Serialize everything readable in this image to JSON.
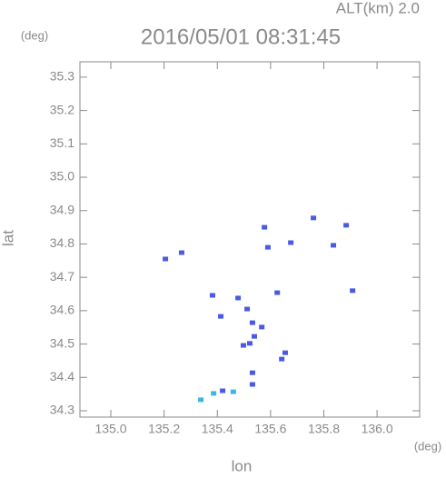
{
  "chart_data": {
    "type": "scatter",
    "title": "2016/05/01 08:31:45",
    "subtitle": "ALT(km) 2.0",
    "x_label": "lon",
    "y_label": "lat",
    "x_unit": "(deg)",
    "y_unit": "(deg)",
    "xlim": [
      134.884,
      136.16
    ],
    "ylim": [
      34.281,
      35.346
    ],
    "xticks": [
      {
        "value": 135.0,
        "label": "135.0"
      },
      135.2,
      135.4,
      135.6,
      135.8,
      {
        "value": 136.0,
        "label": "136.0"
      }
    ],
    "yticks": [
      34.3,
      34.4,
      34.5,
      34.6,
      34.7,
      34.8,
      34.9,
      {
        "value": 35.0,
        "label": "35.0"
      },
      35.1,
      35.2,
      35.3
    ],
    "series": [
      {
        "color": "#4a5ae6",
        "x": [
          135.761,
          135.884,
          135.577,
          135.59,
          135.676,
          135.836,
          135.266,
          135.205,
          135.908,
          135.625,
          135.382,
          135.478,
          135.512,
          135.413,
          135.532,
          135.567,
          135.522,
          135.539,
          135.498,
          135.655,
          135.642,
          135.532,
          135.532,
          135.42
        ],
        "values": [
          34.878,
          34.856,
          34.85,
          34.79,
          34.804,
          34.796,
          34.774,
          34.755,
          34.66,
          34.654,
          34.646,
          34.638,
          34.605,
          34.583,
          34.564,
          34.551,
          34.502,
          34.523,
          34.496,
          34.474,
          34.455,
          34.414,
          34.379,
          34.36
        ]
      },
      {
        "color": "#40b4ea",
        "x": [
          135.386,
          135.338,
          135.46
        ],
        "values": [
          34.352,
          34.333,
          34.357
        ]
      }
    ]
  }
}
